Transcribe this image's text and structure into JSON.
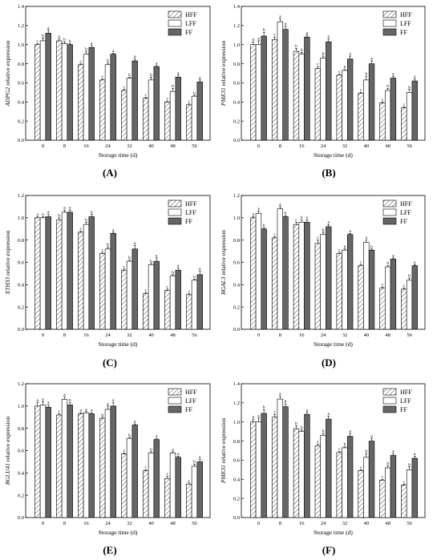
{
  "chart_data": [
    {
      "panel": "(A)",
      "type": "bar",
      "gene": "ADPG2",
      "ylabel_suffix": " relative expression",
      "xlabel": "Storage time (d)",
      "ylim": [
        0,
        1.4
      ],
      "yticks": [
        "0.0",
        "0.2",
        "0.4",
        "0.6",
        "0.8",
        "1.0",
        "1.2",
        "1.4"
      ],
      "categories": [
        "0",
        "8",
        "16",
        "24",
        "32",
        "40",
        "48",
        "56"
      ],
      "series": [
        {
          "name": "HFF",
          "values": [
            1.0,
            1.04,
            0.79,
            0.63,
            0.52,
            0.44,
            0.4,
            0.37
          ],
          "errors": [
            0.01,
            0.02,
            0.01,
            0.01,
            0.01,
            0.01,
            0.01,
            0.01
          ],
          "sig": [
            "c",
            "a",
            "c",
            "c",
            "c",
            "c",
            "c",
            "c"
          ]
        },
        {
          "name": "LFF",
          "values": [
            1.04,
            1.01,
            0.9,
            0.79,
            0.65,
            0.63,
            0.51,
            0.46
          ],
          "errors": [
            0.03,
            0.02,
            0.03,
            0.02,
            0.01,
            0.03,
            0.03,
            0.01
          ],
          "sig": [
            "b",
            "b",
            "b",
            "b",
            "b",
            "b",
            "b",
            "b"
          ]
        },
        {
          "name": "FF",
          "values": [
            1.12,
            1.0,
            0.97,
            0.9,
            0.83,
            0.77,
            0.66,
            0.61
          ],
          "errors": [
            0.03,
            0.01,
            0.02,
            0.01,
            0.02,
            0.01,
            0.02,
            0.02
          ],
          "sig": [
            "a",
            "b",
            "a",
            "a",
            "a",
            "a",
            "a",
            "a"
          ]
        }
      ]
    },
    {
      "panel": "(B)",
      "type": "bar",
      "gene": "PME31",
      "ylabel_suffix": " relative expression",
      "xlabel": "Storage time (d)",
      "ylim": [
        0,
        1.4
      ],
      "yticks": [
        "0.0",
        "0.2",
        "0.4",
        "0.6",
        "0.8",
        "1.0",
        "1.2",
        "1.4"
      ],
      "categories": [
        "0",
        "8",
        "16",
        "24",
        "32",
        "40",
        "48",
        "56"
      ],
      "series": [
        {
          "name": "HFF",
          "values": [
            1.0,
            1.05,
            0.93,
            0.75,
            0.68,
            0.49,
            0.39,
            0.34
          ],
          "errors": [
            0.03,
            0.03,
            0.03,
            0.02,
            0.01,
            0.01,
            0.01,
            0.01
          ],
          "sig": [
            "a",
            "c",
            "b",
            "c",
            "c",
            "c",
            "c",
            "c"
          ]
        },
        {
          "name": "LFF",
          "values": [
            1.0,
            1.24,
            0.9,
            0.86,
            0.73,
            0.63,
            0.52,
            0.5
          ],
          "errors": [
            0.04,
            0.03,
            0.02,
            0.02,
            0.01,
            0.04,
            0.02,
            0.03
          ],
          "sig": [
            "a",
            "a",
            "b",
            "b",
            "b",
            "b",
            "b",
            "b"
          ]
        },
        {
          "name": "FF",
          "values": [
            1.09,
            1.16,
            1.08,
            1.03,
            0.85,
            0.8,
            0.65,
            0.62
          ],
          "errors": [
            0.04,
            0.03,
            0.02,
            0.03,
            0.03,
            0.03,
            0.02,
            0.02
          ],
          "sig": [
            "b",
            "b",
            "a",
            "a",
            "a",
            "a",
            "a",
            "a"
          ]
        }
      ]
    },
    {
      "panel": "(C)",
      "type": "bar",
      "gene": "XTH33",
      "ylabel_suffix": " relative expression",
      "xlabel": "Storage time (d)",
      "ylim": [
        0,
        1.2
      ],
      "yticks": [
        "0.0",
        "0.2",
        "0.4",
        "0.6",
        "0.8",
        "1.0",
        "1.2"
      ],
      "categories": [
        "0",
        "8",
        "16",
        "24",
        "32",
        "40",
        "48",
        "56"
      ],
      "series": [
        {
          "name": "HFF",
          "values": [
            1.0,
            0.98,
            0.87,
            0.68,
            0.53,
            0.32,
            0.35,
            0.31
          ],
          "errors": [
            0.01,
            0.02,
            0.01,
            0.01,
            0.01,
            0.01,
            0.01,
            0.01
          ],
          "sig": [
            "a",
            "b",
            "c",
            "c",
            "c",
            "c",
            "c",
            "c"
          ]
        },
        {
          "name": "LFF",
          "values": [
            1.0,
            1.05,
            0.94,
            0.72,
            0.61,
            0.58,
            0.48,
            0.44
          ],
          "errors": [
            0.01,
            0.02,
            0.02,
            0.02,
            0.01,
            0.01,
            0.01,
            0.01
          ],
          "sig": [
            "a",
            "a",
            "b",
            "b",
            "b",
            "b",
            "b",
            "b"
          ]
        },
        {
          "name": "FF",
          "values": [
            1.01,
            1.05,
            1.01,
            0.86,
            0.72,
            0.61,
            0.53,
            0.49
          ],
          "errors": [
            0.02,
            0.02,
            0.02,
            0.01,
            0.03,
            0.03,
            0.02,
            0.03
          ],
          "sig": [
            "a",
            "a",
            "a",
            "a",
            "a",
            "a",
            "a",
            "a"
          ]
        }
      ]
    },
    {
      "panel": "(D)",
      "type": "bar",
      "gene": "BGAL3",
      "ylabel_suffix": " relative expression",
      "xlabel": "Storage time (d)",
      "ylim": [
        0,
        1.2
      ],
      "yticks": [
        "0.0",
        "0.2",
        "0.4",
        "0.6",
        "0.8",
        "1.0",
        "1.2"
      ],
      "categories": [
        "0",
        "8",
        "16",
        "24",
        "32",
        "40",
        "48",
        "56"
      ],
      "series": [
        {
          "name": "HFF",
          "values": [
            1.0,
            0.82,
            0.94,
            0.77,
            0.68,
            0.57,
            0.37,
            0.36
          ],
          "errors": [
            0.01,
            0.01,
            0.02,
            0.03,
            0.01,
            0.01,
            0.01,
            0.01
          ],
          "sig": [
            "a",
            "c",
            "c",
            "c",
            "c",
            "c",
            "c",
            "c"
          ]
        },
        {
          "name": "LFF",
          "values": [
            1.04,
            1.08,
            0.96,
            0.85,
            0.71,
            0.78,
            0.56,
            0.44
          ],
          "errors": [
            0.02,
            0.02,
            0.02,
            0.02,
            0.01,
            0.02,
            0.01,
            0.02
          ],
          "sig": [
            "a",
            "a",
            "b",
            "b",
            "b",
            "a",
            "b",
            "b"
          ]
        },
        {
          "name": "FF",
          "values": [
            0.9,
            1.01,
            0.96,
            0.92,
            0.85,
            0.71,
            0.63,
            0.57
          ],
          "errors": [
            0.01,
            0.01,
            0.02,
            0.02,
            0.01,
            0.01,
            0.01,
            0.01
          ],
          "sig": [
            "b",
            "b",
            "a",
            "a",
            "a",
            "b",
            "a",
            "a"
          ]
        }
      ]
    },
    {
      "panel": "(E)",
      "type": "bar",
      "gene": "BGLU41",
      "ylabel_suffix": " relative expression",
      "xlabel": "Storage time (d)",
      "ylim": [
        0,
        1.2
      ],
      "yticks": [
        "0.0",
        "0.2",
        "0.4",
        "0.6",
        "0.8",
        "1.0",
        "1.2"
      ],
      "categories": [
        "0",
        "8",
        "16",
        "24",
        "32",
        "40",
        "48",
        "56"
      ],
      "series": [
        {
          "name": "HFF",
          "values": [
            1.0,
            0.92,
            0.93,
            0.89,
            0.57,
            0.42,
            0.35,
            0.3
          ],
          "errors": [
            0.03,
            0.01,
            0.01,
            0.01,
            0.01,
            0.01,
            0.02,
            0.01
          ],
          "sig": [
            "a",
            "c",
            "a",
            "b",
            "c",
            "c",
            "c",
            "c"
          ]
        },
        {
          "name": "LFF",
          "values": [
            1.01,
            1.06,
            0.94,
            0.97,
            0.71,
            0.58,
            0.58,
            0.46
          ],
          "errors": [
            0.03,
            0.02,
            0.01,
            0.03,
            0.01,
            0.01,
            0.01,
            0.02
          ],
          "sig": [
            "a",
            "a",
            "a",
            "a",
            "b",
            "b",
            "a",
            "b"
          ]
        },
        {
          "name": "FF",
          "values": [
            0.99,
            1.01,
            0.93,
            1.0,
            0.83,
            0.7,
            0.54,
            0.5
          ],
          "errors": [
            0.02,
            0.02,
            0.01,
            0.03,
            0.01,
            0.01,
            0.01,
            0.02
          ],
          "sig": [
            "a",
            "b",
            "a",
            "a",
            "a",
            "a",
            "a",
            "a"
          ]
        }
      ]
    },
    {
      "panel": "(F)",
      "type": "bar",
      "gene": "PME31",
      "ylabel_suffix": " relative expression",
      "xlabel": "Storage time (d)",
      "ylim": [
        0,
        1.4
      ],
      "yticks": [
        "0.0",
        "0.2",
        "0.4",
        "0.6",
        "0.8",
        "1.0",
        "1.2",
        "1.4"
      ],
      "categories": [
        "0",
        "8",
        "16",
        "24",
        "32",
        "40",
        "48",
        "56"
      ],
      "series": [
        {
          "name": "HFF",
          "values": [
            1.0,
            1.05,
            0.93,
            0.75,
            0.68,
            0.49,
            0.39,
            0.34
          ],
          "errors": [
            0.03,
            0.03,
            0.03,
            0.02,
            0.01,
            0.01,
            0.01,
            0.01
          ],
          "sig": [
            "a",
            "c",
            "b",
            "c",
            "c",
            "c",
            "c",
            "c"
          ]
        },
        {
          "name": "LFF",
          "values": [
            1.0,
            1.24,
            0.9,
            0.86,
            0.73,
            0.63,
            0.52,
            0.5
          ],
          "errors": [
            0.04,
            0.03,
            0.02,
            0.02,
            0.01,
            0.04,
            0.02,
            0.03
          ],
          "sig": [
            "a",
            "a",
            "b",
            "b",
            "b",
            "b",
            "b",
            "b"
          ]
        },
        {
          "name": "FF",
          "values": [
            1.09,
            1.16,
            1.08,
            1.03,
            0.85,
            0.8,
            0.65,
            0.62
          ],
          "errors": [
            0.04,
            0.03,
            0.02,
            0.03,
            0.03,
            0.03,
            0.02,
            0.02
          ],
          "sig": [
            "b",
            "b",
            "a",
            "a",
            "a",
            "a",
            "a",
            "a"
          ]
        }
      ]
    }
  ],
  "series_styles": {
    "HFF": {
      "fill": "hatch",
      "color": "#ffffff"
    },
    "LFF": {
      "fill": "solid",
      "color": "#ffffff"
    },
    "FF": {
      "fill": "solid",
      "color": "#666666"
    }
  }
}
